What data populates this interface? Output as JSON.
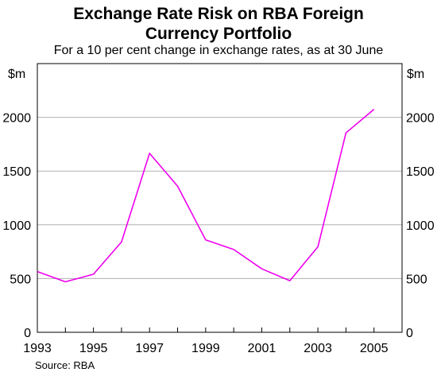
{
  "title_line1": "Exchange Rate Risk on RBA Foreign",
  "title_line2": "Currency Portfolio",
  "subtitle": "For a 10 per cent change in exchange rates, as at 30 June",
  "source": "Source: RBA",
  "chart_data": {
    "type": "line",
    "title": "Exchange Rate Risk on RBA Foreign Currency Portfolio",
    "subtitle": "For a 10 per cent change in exchange rates, as at 30 June",
    "unit_left": "$m",
    "unit_right": "$m",
    "x": [
      1993,
      1994,
      1995,
      1996,
      1997,
      1998,
      1999,
      2000,
      2001,
      2002,
      2003,
      2004,
      2005
    ],
    "series": [
      {
        "values": [
          565,
          470,
          540,
          840,
          1665,
          1360,
          860,
          770,
          590,
          480,
          795,
          1855,
          2075
        ],
        "color": "#ee00ee"
      }
    ],
    "xlim": [
      1993,
      2006
    ],
    "ylim": [
      0,
      2500
    ],
    "yticks": [
      0,
      500,
      1000,
      1500,
      2000
    ],
    "xticks": [
      1993,
      1995,
      1997,
      1999,
      2001,
      2003,
      2005
    ],
    "grid": true
  }
}
